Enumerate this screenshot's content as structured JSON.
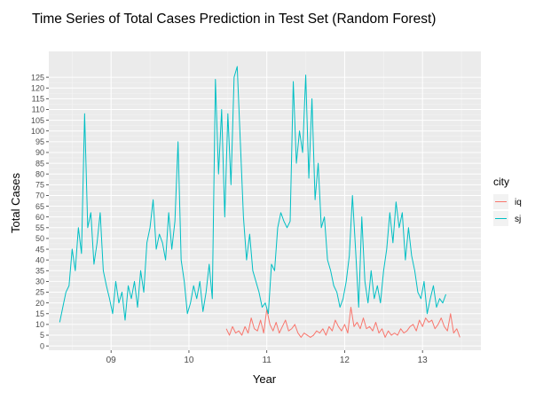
{
  "chart_data": {
    "type": "line",
    "title": "Time Series of Total Cases Prediction in Test Set (Random Forest)",
    "xlabel": "Year",
    "ylabel": "Total Cases",
    "xlim": [
      8.2,
      13.75
    ],
    "ylim": [
      -2,
      137
    ],
    "x_ticks": [
      9,
      10,
      11,
      12,
      13
    ],
    "x_tick_labels": [
      "09",
      "10",
      "11",
      "12",
      "13"
    ],
    "y_ticks": [
      0,
      5,
      10,
      15,
      20,
      25,
      30,
      35,
      40,
      45,
      50,
      55,
      60,
      65,
      70,
      75,
      80,
      85,
      90,
      95,
      100,
      105,
      110,
      115,
      120,
      125
    ],
    "grid": true,
    "legend": {
      "title": "city",
      "position": "right"
    },
    "series": [
      {
        "name": "iq",
        "color": "#F8766D",
        "x": [
          10.48,
          10.52,
          10.56,
          10.6,
          10.64,
          10.68,
          10.72,
          10.76,
          10.8,
          10.84,
          10.88,
          10.92,
          10.96,
          11.0,
          11.04,
          11.08,
          11.12,
          11.16,
          11.2,
          11.24,
          11.28,
          11.32,
          11.36,
          11.4,
          11.44,
          11.48,
          11.52,
          11.56,
          11.6,
          11.64,
          11.68,
          11.72,
          11.76,
          11.8,
          11.84,
          11.88,
          11.92,
          11.96,
          12.0,
          12.04,
          12.08,
          12.12,
          12.16,
          12.2,
          12.24,
          12.28,
          12.32,
          12.36,
          12.4,
          12.44,
          12.48,
          12.52,
          12.56,
          12.6,
          12.64,
          12.68,
          12.72,
          12.76,
          12.8,
          12.84,
          12.88,
          12.92,
          12.96,
          13.0,
          13.04,
          13.08,
          13.12,
          13.16,
          13.2,
          13.24,
          13.28,
          13.32,
          13.36,
          13.4,
          13.44,
          13.48
        ],
        "values": [
          8,
          5,
          9,
          6,
          7,
          5,
          9,
          6,
          13,
          8,
          7,
          12,
          6,
          17,
          10,
          7,
          11,
          6,
          9,
          12,
          7,
          8,
          10,
          6,
          4,
          6,
          5,
          4,
          5,
          7,
          6,
          8,
          5,
          9,
          7,
          12,
          9,
          7,
          10,
          6,
          18,
          9,
          11,
          8,
          13,
          8,
          9,
          7,
          11,
          6,
          8,
          4,
          7,
          5,
          6,
          5,
          8,
          6,
          7,
          9,
          10,
          7,
          12,
          9,
          13,
          11,
          12,
          8,
          10,
          13,
          9,
          7,
          15,
          6,
          8,
          4
        ]
      },
      {
        "name": "sj",
        "color": "#00BFC4",
        "x": [
          8.34,
          8.38,
          8.42,
          8.46,
          8.5,
          8.54,
          8.58,
          8.62,
          8.66,
          8.7,
          8.74,
          8.78,
          8.82,
          8.86,
          8.9,
          8.94,
          8.98,
          9.02,
          9.06,
          9.1,
          9.14,
          9.18,
          9.22,
          9.26,
          9.3,
          9.34,
          9.38,
          9.42,
          9.46,
          9.5,
          9.54,
          9.58,
          9.62,
          9.66,
          9.7,
          9.74,
          9.78,
          9.82,
          9.86,
          9.9,
          9.94,
          9.98,
          10.02,
          10.06,
          10.1,
          10.14,
          10.18,
          10.22,
          10.26,
          10.3,
          10.34,
          10.38,
          10.42,
          10.46,
          10.5,
          10.54,
          10.58,
          10.62,
          10.66,
          10.7,
          10.74,
          10.78,
          10.82,
          10.86,
          10.9,
          10.94,
          10.98,
          11.02,
          11.06,
          11.1,
          11.14,
          11.18,
          11.22,
          11.26,
          11.3,
          11.34,
          11.38,
          11.42,
          11.46,
          11.5,
          11.54,
          11.58,
          11.62,
          11.66,
          11.7,
          11.74,
          11.78,
          11.82,
          11.86,
          11.9,
          11.94,
          11.98,
          12.02,
          12.06,
          12.1,
          12.14,
          12.18,
          12.22,
          12.26,
          12.3,
          12.34,
          12.38,
          12.42,
          12.46,
          12.5,
          12.54,
          12.58,
          12.62,
          12.66,
          12.7,
          12.74,
          12.78,
          12.82,
          12.86,
          12.9,
          12.94,
          12.98,
          13.02,
          13.06,
          13.1,
          13.14,
          13.18,
          13.22,
          13.26,
          13.3
        ],
        "values": [
          11,
          18,
          25,
          28,
          45,
          35,
          55,
          43,
          108,
          55,
          62,
          38,
          48,
          62,
          35,
          28,
          22,
          15,
          30,
          20,
          25,
          12,
          28,
          22,
          30,
          18,
          35,
          25,
          48,
          55,
          68,
          45,
          52,
          48,
          40,
          62,
          45,
          58,
          95,
          40,
          30,
          15,
          20,
          28,
          22,
          30,
          16,
          25,
          38,
          22,
          124,
          80,
          110,
          60,
          108,
          75,
          125,
          130,
          95,
          60,
          40,
          52,
          35,
          30,
          25,
          18,
          20,
          15,
          38,
          35,
          55,
          62,
          58,
          55,
          58,
          123,
          85,
          100,
          90,
          126,
          78,
          115,
          68,
          85,
          55,
          60,
          40,
          35,
          28,
          25,
          18,
          22,
          30,
          42,
          70,
          45,
          18,
          60,
          30,
          20,
          35,
          22,
          28,
          20,
          35,
          45,
          62,
          48,
          67,
          55,
          62,
          40,
          55,
          42,
          35,
          25,
          22,
          30,
          15,
          22,
          28,
          18,
          22,
          20,
          24
        ]
      }
    ]
  }
}
